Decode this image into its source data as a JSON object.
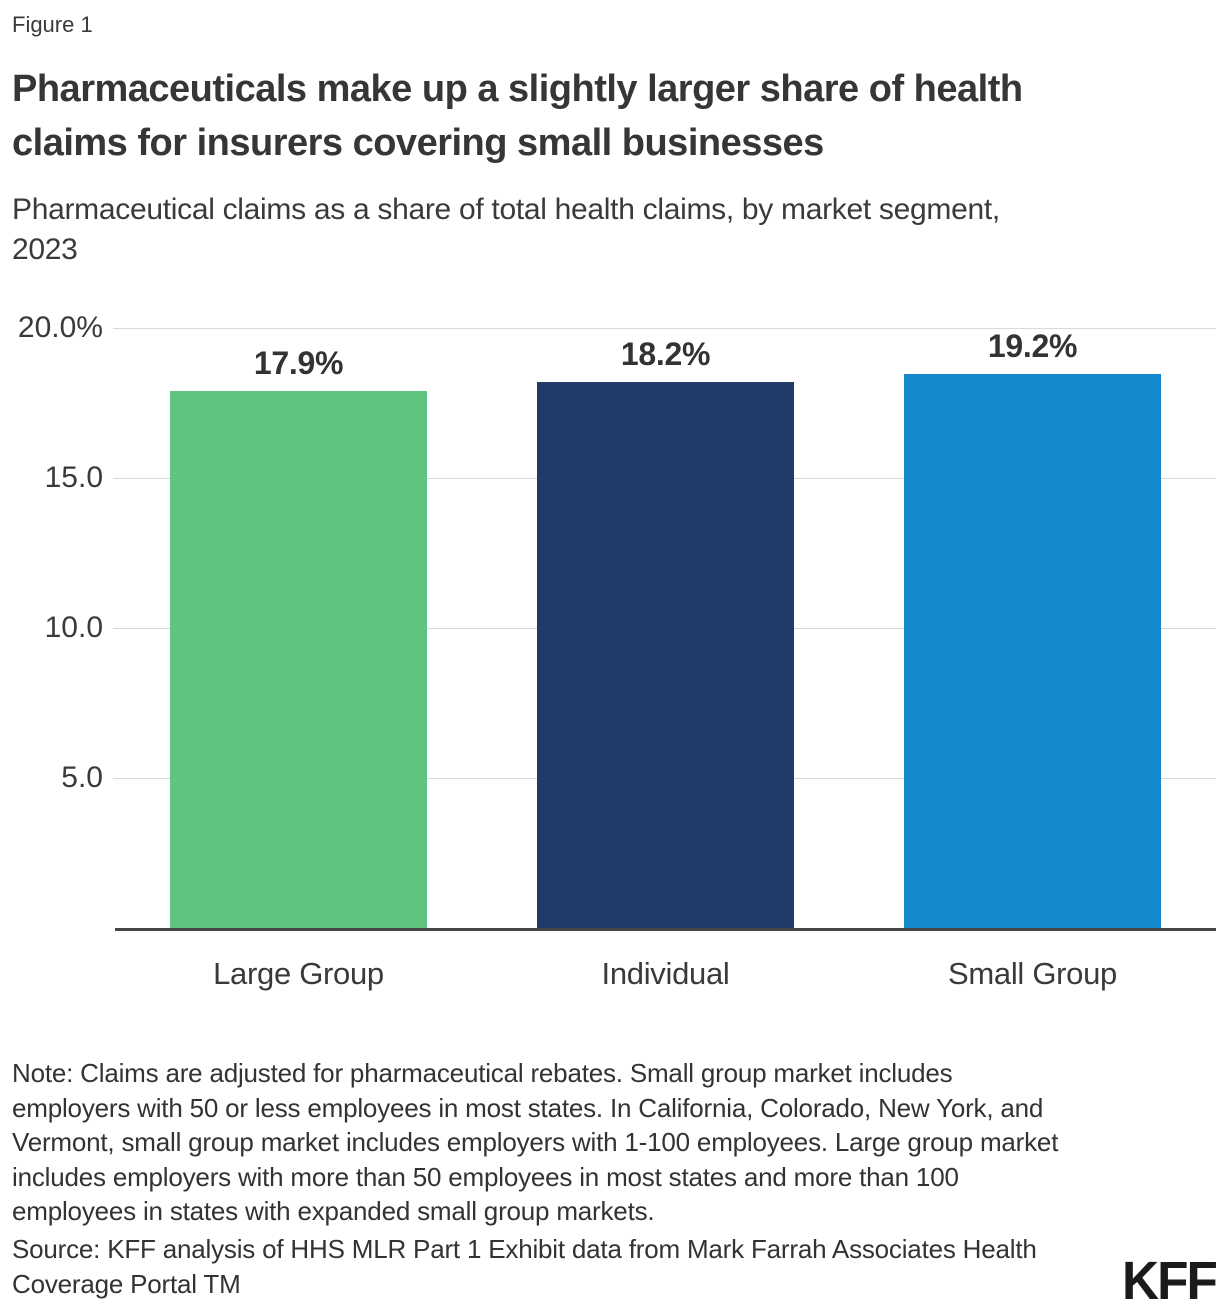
{
  "figure_label": "Figure 1",
  "title_lines": [
    "Pharmaceuticals make up a slightly larger share of health",
    "claims for insurers covering small businesses"
  ],
  "subtitle_lines": [
    "Pharmaceutical claims as a share of total health claims, by market segment,",
    "2023"
  ],
  "chart_data": {
    "type": "bar",
    "title": "Pharmaceuticals make up a slightly larger share of health claims for insurers covering small businesses",
    "subtitle": "Pharmaceutical claims as a share of total health claims, by market segment, 2023",
    "categories": [
      "Large Group",
      "Individual",
      "Small Group"
    ],
    "values": [
      17.9,
      18.2,
      19.2
    ],
    "value_labels": [
      "17.9%",
      "18.2%",
      "19.2%"
    ],
    "bar_colors": [
      "#5fc47d",
      "#203a69",
      "#1689cd"
    ],
    "y_ticks": [
      "20.0%",
      "15.0",
      "10.0",
      "5.0"
    ],
    "y_tick_values": [
      20,
      15,
      10,
      5
    ],
    "ylim": [
      0,
      20
    ],
    "xlabel": "",
    "ylabel": "",
    "grid": true,
    "legend": false
  },
  "note_lines": [
    "Note: Claims are adjusted for pharmaceutical rebates. Small group market includes",
    "employers with 50 or less employees in most states. In California, Colorado, New York, and",
    "Vermont, small group market includes employers with 1-100 employees. Large group market",
    "includes employers with more than 50 employees in most states and more than 100",
    "employees in states with expanded small group markets."
  ],
  "source_lines": [
    "Source: KFF analysis of HHS MLR Part 1 Exhibit data from Mark Farrah Associates Health",
    "Coverage Portal TM"
  ],
  "logo_text": "KFF",
  "colors": {
    "text": "#333333",
    "gridline": "#d9d9d9",
    "axis": "#454545",
    "large_group": "#5fc47d",
    "individual": "#203a69",
    "small_group": "#1689cd"
  }
}
